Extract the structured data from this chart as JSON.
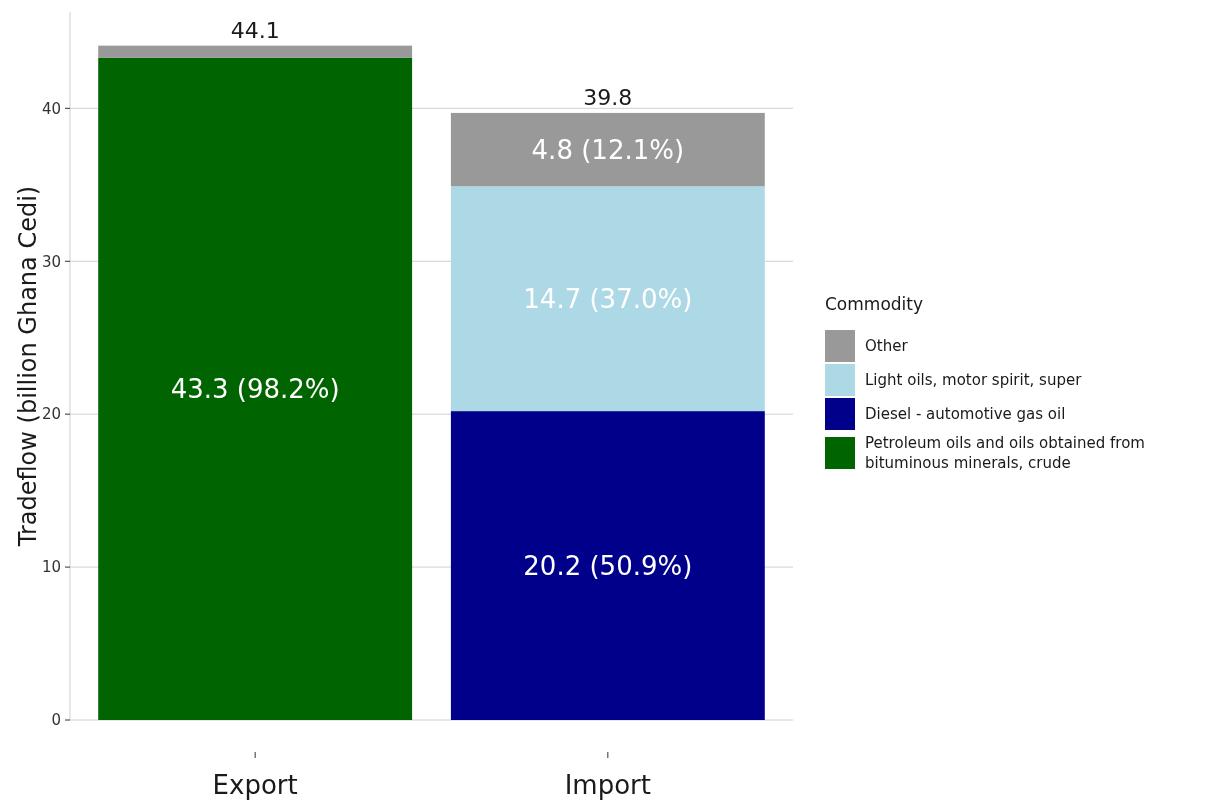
{
  "chart_data": {
    "type": "bar",
    "stacked": true,
    "ylabel": "Tradeflow (billion Ghana Cedi)",
    "legend_title": "Commodity",
    "legend": "right",
    "grid": "y",
    "categories": [
      "Export",
      "Import"
    ],
    "series": [
      {
        "name": "Petroleum oils and oils obtained from bituminous minerals, crude",
        "color": "#006400",
        "values": [
          43.3,
          null
        ],
        "value_labels": [
          "43.3 (98.2%)",
          null
        ]
      },
      {
        "name": "Diesel - automotive gas oil",
        "color": "#00008b",
        "values": [
          null,
          20.2
        ],
        "value_labels": [
          null,
          "20.2 (50.9%)"
        ]
      },
      {
        "name": "Light oils, motor spirit, super",
        "color": "#add8e6",
        "values": [
          null,
          14.7
        ],
        "value_labels": [
          null,
          "14.7 (37.0%)"
        ]
      },
      {
        "name": "Other",
        "color": "#999999",
        "values": [
          0.8,
          4.8
        ],
        "value_labels": [
          null,
          "4.8 (12.1%)"
        ]
      }
    ],
    "totals": [
      "44.1",
      "39.8"
    ],
    "ylim": [
      0,
      46.3
    ],
    "yticks": [
      0,
      10,
      20,
      30,
      40
    ]
  }
}
